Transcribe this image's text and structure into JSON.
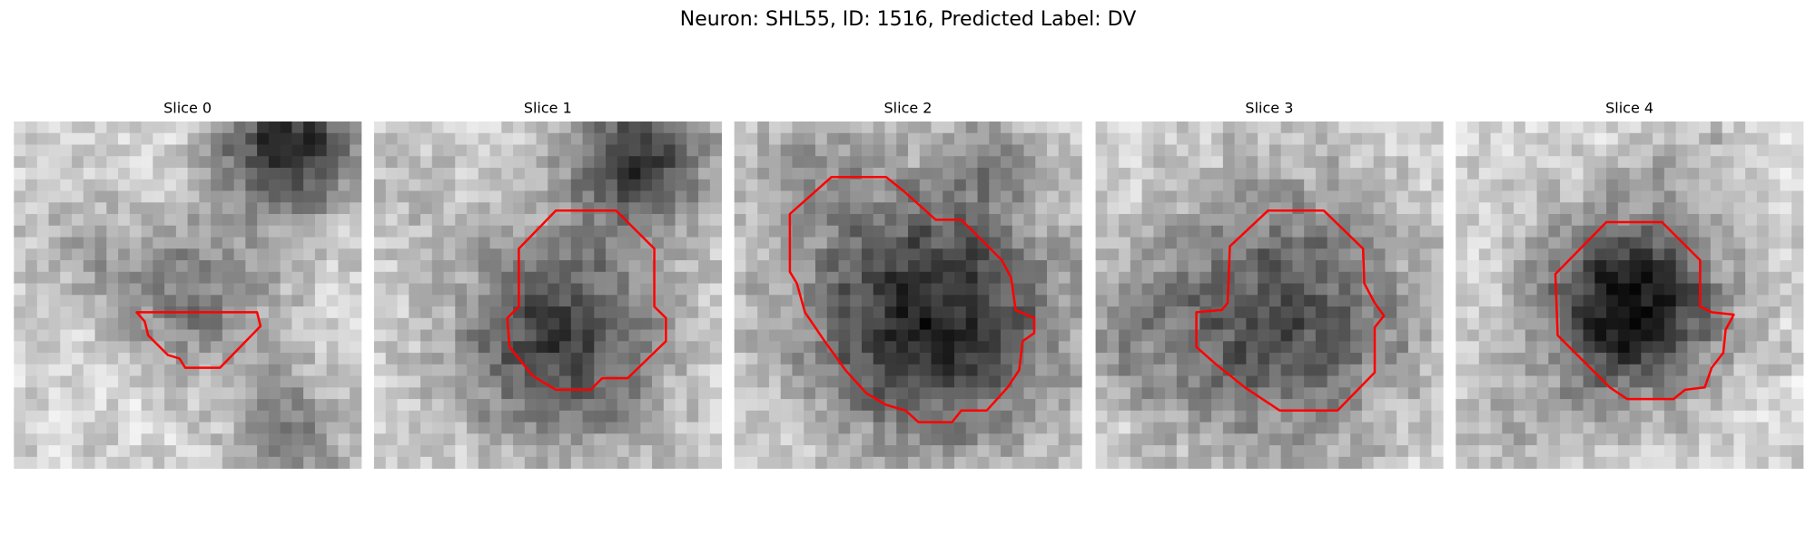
{
  "title": "Neuron: SHL55, ID: 1516, Predicted Label: DV",
  "panels": [
    {
      "title": "Slice 0"
    },
    {
      "title": "Slice 1"
    },
    {
      "title": "Slice 2"
    },
    {
      "title": "Slice 3"
    },
    {
      "title": "Slice 4"
    }
  ]
}
